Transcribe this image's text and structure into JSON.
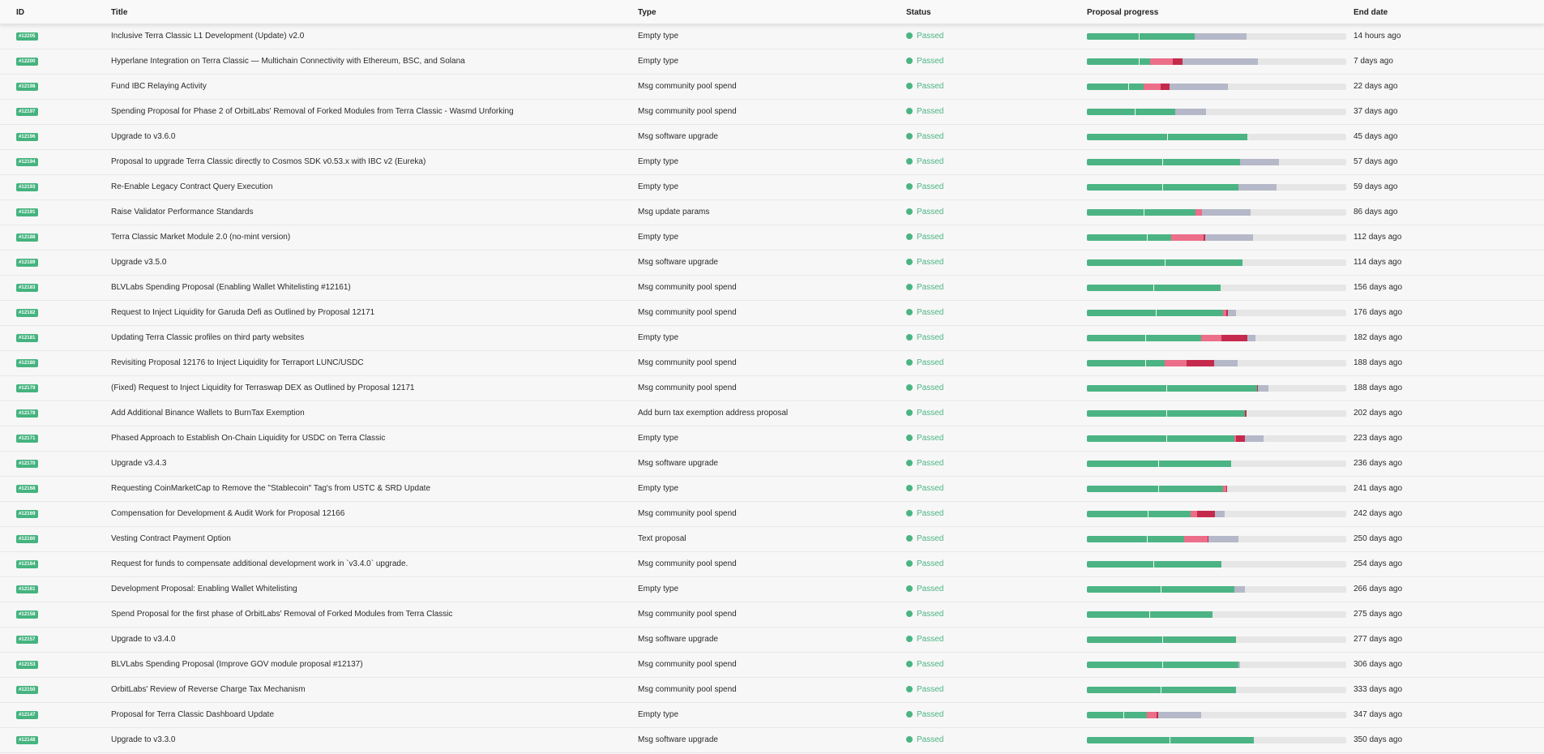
{
  "columns": {
    "id": "ID",
    "title": "Title",
    "type": "Type",
    "status": "Status",
    "progress": "Proposal progress",
    "end_date": "End date"
  },
  "colors": {
    "yes": "#4cb484",
    "no": "#ec6e89",
    "no_with_veto": "#c52a4d",
    "abstain": "#b5b8c8",
    "empty": "#e6e6e6",
    "passed": "#4cb484"
  },
  "proposals": [
    {
      "id": "#12205",
      "title": "Inclusive Terra Classic L1 Development (Update) v2.0",
      "type": "Empty type",
      "status": "Passed",
      "end": "14 hours ago",
      "progress": {
        "yes": 0.415,
        "no": 0,
        "veto": 0,
        "abstain": 0.2,
        "mark": 0.2
      }
    },
    {
      "id": "#12200",
      "title": "Hyperlane Integration on Terra Classic — Multichain Connectivity with Ethereum, BSC, and Solana",
      "type": "Empty type",
      "status": "Passed",
      "end": "7 days ago",
      "progress": {
        "yes": 0.245,
        "no": 0.085,
        "veto": 0.04,
        "abstain": 0.29,
        "mark": 0.2
      }
    },
    {
      "id": "#12198",
      "title": "Fund IBC Relaying Activity",
      "type": "Msg community pool spend",
      "status": "Passed",
      "end": "22 days ago",
      "progress": {
        "yes": 0.22,
        "no": 0.063,
        "veto": 0.037,
        "abstain": 0.225,
        "mark": 0.16
      }
    },
    {
      "id": "#12197",
      "title": "Spending Proposal for Phase 2 of OrbitLabs' Removal of Forked Modules from Terra Classic - Wasmd Unforking",
      "type": "Msg community pool spend",
      "status": "Passed",
      "end": "37 days ago",
      "progress": {
        "yes": 0.34,
        "no": 0,
        "veto": 0,
        "abstain": 0.12,
        "mark": 0.185
      }
    },
    {
      "id": "#12196",
      "title": "Upgrade to v3.6.0",
      "type": "Msg software upgrade",
      "status": "Passed",
      "end": "45 days ago",
      "progress": {
        "yes": 0.62,
        "no": 0,
        "veto": 0,
        "abstain": 0,
        "mark": 0.31
      }
    },
    {
      "id": "#12194",
      "title": "Proposal to upgrade Terra Classic directly to Cosmos SDK v0.53.x with IBC v2 (Eureka)",
      "type": "Empty type",
      "status": "Passed",
      "end": "57 days ago",
      "progress": {
        "yes": 0.59,
        "no": 0,
        "veto": 0,
        "abstain": 0.15,
        "mark": 0.29
      }
    },
    {
      "id": "#12193",
      "title": "Re-Enable Legacy Contract Query Execution",
      "type": "Empty type",
      "status": "Passed",
      "end": "59 days ago",
      "progress": {
        "yes": 0.585,
        "no": 0,
        "veto": 0,
        "abstain": 0.145,
        "mark": 0.29
      }
    },
    {
      "id": "#12191",
      "title": "Raise Validator Performance Standards",
      "type": "Msg update params",
      "status": "Passed",
      "end": "86 days ago",
      "progress": {
        "yes": 0.42,
        "no": 0.025,
        "veto": 0,
        "abstain": 0.185,
        "mark": 0.22
      }
    },
    {
      "id": "#12188",
      "title": "Terra Classic Market Module 2.0 (no-mint version)",
      "type": "Empty type",
      "status": "Passed",
      "end": "112 days ago",
      "progress": {
        "yes": 0.325,
        "no": 0.125,
        "veto": 0.005,
        "abstain": 0.185,
        "mark": 0.23
      }
    },
    {
      "id": "#12189",
      "title": "Upgrade v3.5.0",
      "type": "Msg software upgrade",
      "status": "Passed",
      "end": "114 days ago",
      "progress": {
        "yes": 0.6,
        "no": 0,
        "veto": 0,
        "abstain": 0,
        "mark": 0.3
      }
    },
    {
      "id": "#12183",
      "title": "BLVLabs Spending Proposal (Enabling Wallet Whitelisting #12161)",
      "type": "Msg community pool spend",
      "status": "Passed",
      "end": "156 days ago",
      "progress": {
        "yes": 0.515,
        "no": 0,
        "veto": 0,
        "abstain": 0,
        "mark": 0.255
      }
    },
    {
      "id": "#12182",
      "title": "Request to Inject Liquidity for Garuda Defi as Outlined by Proposal 12171",
      "type": "Msg community pool spend",
      "status": "Passed",
      "end": "176 days ago",
      "progress": {
        "yes": 0.525,
        "no": 0.012,
        "veto": 0.008,
        "abstain": 0.03,
        "mark": 0.265
      }
    },
    {
      "id": "#12181",
      "title": "Updating Terra Classic profiles on third party websites",
      "type": "Empty type",
      "status": "Passed",
      "end": "182 days ago",
      "progress": {
        "yes": 0.44,
        "no": 0.08,
        "veto": 0.1,
        "abstain": 0.03,
        "mark": 0.225
      }
    },
    {
      "id": "#12180",
      "title": "Revisiting Proposal 12176 to Inject Liquidity for Terraport LUNC/USDC",
      "type": "Msg community pool spend",
      "status": "Passed",
      "end": "188 days ago",
      "progress": {
        "yes": 0.3,
        "no": 0.085,
        "veto": 0.105,
        "abstain": 0.09,
        "mark": 0.225
      }
    },
    {
      "id": "#12179",
      "title": "(Fixed) Request to Inject Liquidity for Terraswap DEX as Outlined by Proposal 12171",
      "type": "Msg community pool spend",
      "status": "Passed",
      "end": "188 days ago",
      "progress": {
        "yes": 0.655,
        "no": 0,
        "veto": 0.005,
        "abstain": 0.04,
        "mark": 0.305
      }
    },
    {
      "id": "#12178",
      "title": "Add Additional Binance Wallets to BurnTax Exemption",
      "type": "Add burn tax exemption address proposal",
      "status": "Passed",
      "end": "202 days ago",
      "progress": {
        "yes": 0.61,
        "no": 0,
        "veto": 0.005,
        "abstain": 0,
        "mark": 0.305
      }
    },
    {
      "id": "#12171",
      "title": "Phased Approach to Establish On-Chain Liquidity for USDC on Terra Classic",
      "type": "Empty type",
      "status": "Passed",
      "end": "223 days ago",
      "progress": {
        "yes": 0.57,
        "no": 0.005,
        "veto": 0.035,
        "abstain": 0.07,
        "mark": 0.305
      }
    },
    {
      "id": "#12170",
      "title": "Upgrade v3.4.3",
      "type": "Msg software upgrade",
      "status": "Passed",
      "end": "236 days ago",
      "progress": {
        "yes": 0.555,
        "no": 0,
        "veto": 0,
        "abstain": 0,
        "mark": 0.275
      }
    },
    {
      "id": "#12168",
      "title": "Requesting CoinMarketCap to Remove the \"Stablecoin\" Tag's from USTC & SRD Update",
      "type": "Empty type",
      "status": "Passed",
      "end": "241 days ago",
      "progress": {
        "yes": 0.525,
        "no": 0.012,
        "veto": 0.005,
        "abstain": 0,
        "mark": 0.275
      }
    },
    {
      "id": "#12169",
      "title": "Compensation for Development & Audit Work for Proposal 12166",
      "type": "Msg community pool spend",
      "status": "Passed",
      "end": "242 days ago",
      "progress": {
        "yes": 0.4,
        "no": 0.025,
        "veto": 0.07,
        "abstain": 0.035,
        "mark": 0.235
      }
    },
    {
      "id": "#12160",
      "title": "Vesting Contract Payment Option",
      "type": "Text proposal",
      "status": "Passed",
      "end": "250 days ago",
      "progress": {
        "yes": 0.375,
        "no": 0.09,
        "veto": 0.005,
        "abstain": 0.115,
        "mark": 0.23
      }
    },
    {
      "id": "#12164",
      "title": "Request for funds to compensate additional development work in `v3.4.0` upgrade.",
      "type": "Msg community pool spend",
      "status": "Passed",
      "end": "254 days ago",
      "progress": {
        "yes": 0.52,
        "no": 0,
        "veto": 0,
        "abstain": 0,
        "mark": 0.255
      }
    },
    {
      "id": "#12161",
      "title": "Development Proposal: Enabling Wallet Whitelisting",
      "type": "Empty type",
      "status": "Passed",
      "end": "266 days ago",
      "progress": {
        "yes": 0.57,
        "no": 0,
        "veto": 0,
        "abstain": 0.04,
        "mark": 0.285
      }
    },
    {
      "id": "#12158",
      "title": "Spend Proposal for the first phase of OrbitLabs' Removal of Forked Modules from Terra Classic",
      "type": "Msg community pool spend",
      "status": "Passed",
      "end": "275 days ago",
      "progress": {
        "yes": 0.485,
        "no": 0,
        "veto": 0,
        "abstain": 0,
        "mark": 0.24
      }
    },
    {
      "id": "#12157",
      "title": "Upgrade to v3.4.0",
      "type": "Msg software upgrade",
      "status": "Passed",
      "end": "277 days ago",
      "progress": {
        "yes": 0.575,
        "no": 0,
        "veto": 0,
        "abstain": 0,
        "mark": 0.29
      }
    },
    {
      "id": "#12153",
      "title": "BLVLabs Spending Proposal (Improve GOV module proposal #12137)",
      "type": "Msg community pool spend",
      "status": "Passed",
      "end": "306 days ago",
      "progress": {
        "yes": 0.585,
        "no": 0,
        "veto": 0,
        "abstain": 0.005,
        "mark": 0.29
      }
    },
    {
      "id": "#12150",
      "title": "OrbitLabs' Review of Reverse Charge Tax Mechanism",
      "type": "Msg community pool spend",
      "status": "Passed",
      "end": "333 days ago",
      "progress": {
        "yes": 0.575,
        "no": 0,
        "veto": 0,
        "abstain": 0,
        "mark": 0.285
      }
    },
    {
      "id": "#12147",
      "title": "Proposal for Terra Classic Dashboard Update",
      "type": "Empty type",
      "status": "Passed",
      "end": "347 days ago",
      "progress": {
        "yes": 0.23,
        "no": 0.04,
        "veto": 0.005,
        "abstain": 0.165,
        "mark": 0.14
      }
    },
    {
      "id": "#12148",
      "title": "Upgrade to v3.3.0",
      "type": "Msg software upgrade",
      "status": "Passed",
      "end": "350 days ago",
      "progress": {
        "yes": 0.645,
        "no": 0,
        "veto": 0,
        "abstain": 0,
        "mark": 0.32
      }
    }
  ]
}
